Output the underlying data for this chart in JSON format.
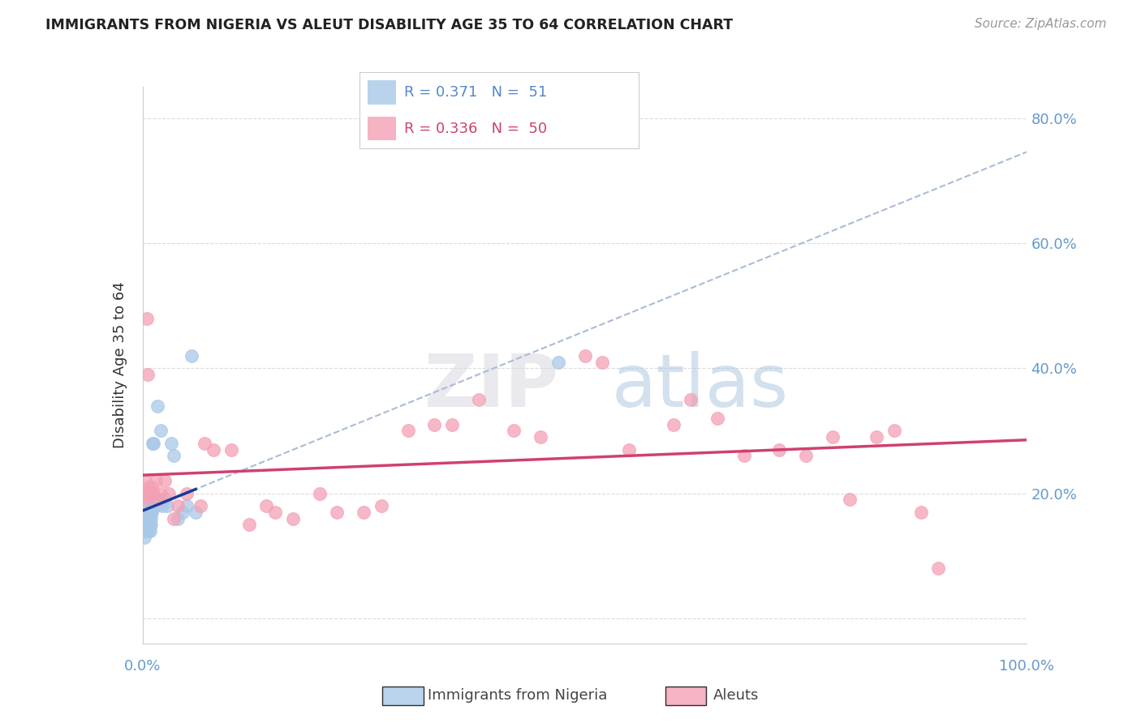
{
  "title": "IMMIGRANTS FROM NIGERIA VS ALEUT DISABILITY AGE 35 TO 64 CORRELATION CHART",
  "source": "Source: ZipAtlas.com",
  "ylabel": "Disability Age 35 to 64",
  "legend_blue_R": "0.371",
  "legend_blue_N": "51",
  "legend_pink_R": "0.336",
  "legend_pink_N": "50",
  "blue_color": "#a8c8e8",
  "pink_color": "#f4a0b5",
  "blue_line_color": "#1a3a9a",
  "pink_line_color": "#d04070",
  "dashed_line_color": "#aabbd8",
  "xlim": [
    0,
    100
  ],
  "ylim": [
    -4,
    85
  ],
  "yticks": [
    0,
    20,
    40,
    60,
    80
  ],
  "ytick_labels": [
    "",
    "20.0%",
    "40.0%",
    "60.0%",
    "80.0%"
  ],
  "background_color": "#ffffff",
  "grid_color": "#d8d8d8",
  "blue_scatter_x": [
    0.1,
    0.15,
    0.2,
    0.2,
    0.25,
    0.3,
    0.3,
    0.35,
    0.4,
    0.4,
    0.45,
    0.5,
    0.5,
    0.55,
    0.6,
    0.6,
    0.65,
    0.7,
    0.7,
    0.75,
    0.8,
    0.8,
    0.85,
    0.9,
    0.9,
    0.95,
    1.0,
    1.0,
    1.1,
    1.2,
    1.3,
    1.5,
    1.7,
    2.0,
    2.2,
    2.5,
    2.8,
    3.2,
    3.5,
    4.0,
    4.5,
    5.0,
    5.5,
    6.0,
    0.12,
    0.18,
    0.22,
    0.32,
    0.42,
    0.52,
    47.0
  ],
  "blue_scatter_y": [
    15,
    14,
    16,
    18,
    13,
    16,
    17,
    15,
    16,
    14,
    15,
    16,
    17,
    14,
    15,
    16,
    15,
    16,
    14,
    17,
    15,
    16,
    14,
    15,
    17,
    16,
    17,
    18,
    28,
    28,
    19,
    18,
    34,
    30,
    18,
    19,
    18,
    28,
    26,
    16,
    17,
    18,
    42,
    17,
    14,
    15,
    15,
    16,
    15,
    14,
    41
  ],
  "pink_scatter_x": [
    0.2,
    0.3,
    0.4,
    0.5,
    0.6,
    0.7,
    0.8,
    1.0,
    1.2,
    1.5,
    2.0,
    2.5,
    3.0,
    4.0,
    5.0,
    6.5,
    8.0,
    10.0,
    12.0,
    14.0,
    17.0,
    20.0,
    22.0,
    25.0,
    27.0,
    30.0,
    33.0,
    35.0,
    38.0,
    42.0,
    45.0,
    50.0,
    52.0,
    55.0,
    60.0,
    62.0,
    65.0,
    68.0,
    72.0,
    75.0,
    78.0,
    80.0,
    83.0,
    85.0,
    88.0,
    90.0,
    1.8,
    3.5,
    7.0,
    15.0
  ],
  "pink_scatter_y": [
    20,
    22,
    19,
    48,
    39,
    21,
    20,
    21,
    20,
    22,
    20,
    22,
    20,
    18,
    20,
    18,
    27,
    27,
    15,
    18,
    16,
    20,
    17,
    17,
    18,
    30,
    31,
    31,
    35,
    30,
    29,
    42,
    41,
    27,
    31,
    35,
    32,
    26,
    27,
    26,
    29,
    19,
    29,
    30,
    17,
    8,
    19,
    16,
    28,
    17
  ]
}
